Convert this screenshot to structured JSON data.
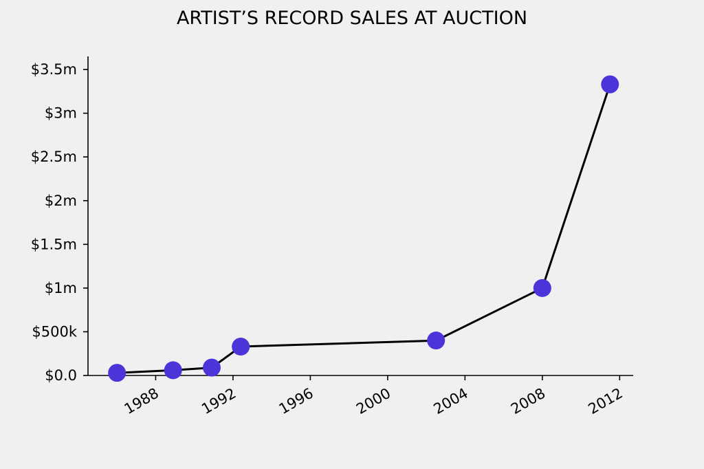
{
  "chart_data": {
    "type": "line",
    "title": "ARTIST’S RECORD SALES AT AUCTION",
    "xlabel": "",
    "ylabel": "",
    "xlim": [
      1984.5,
      2012.7
    ],
    "ylim": [
      0,
      3.65
    ],
    "x_ticks": [
      1988,
      1992,
      1996,
      2000,
      2004,
      2008,
      2012
    ],
    "y_ticks": [
      {
        "value": 0,
        "label": "$0.0"
      },
      {
        "value": 0.5,
        "label": "$500k"
      },
      {
        "value": 1,
        "label": "$1m"
      },
      {
        "value": 1.5,
        "label": "$1.5m"
      },
      {
        "value": 2,
        "label": "$2m"
      },
      {
        "value": 2.5,
        "label": "$2.5m"
      },
      {
        "value": 3,
        "label": "$3m"
      },
      {
        "value": 3.5,
        "label": "$3.5m"
      }
    ],
    "units": "$ millions",
    "grid": false,
    "series": [
      {
        "line_color": "#000000",
        "marker_color": "#4b35d9",
        "x": [
          1986.0,
          1988.9,
          1990.9,
          1992.4,
          2002.5,
          2008.0,
          2011.5
        ],
        "y": [
          0.03,
          0.06,
          0.09,
          0.33,
          0.4,
          1.0,
          3.33
        ]
      }
    ]
  }
}
